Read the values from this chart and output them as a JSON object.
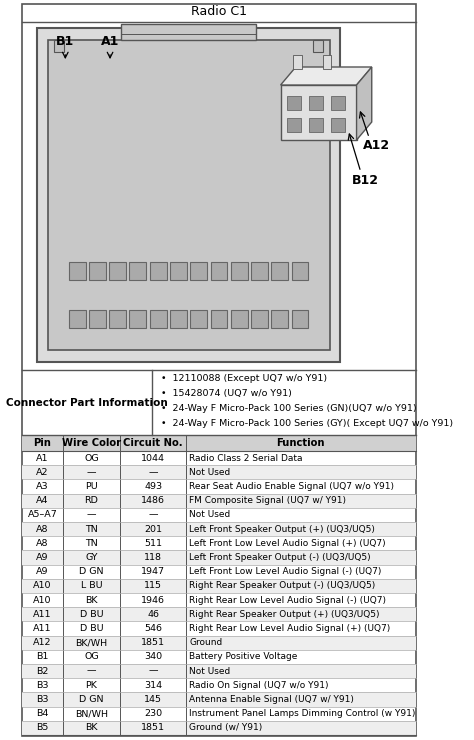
{
  "title": "Radio C1",
  "connector_label": "Connector Part Information",
  "connector_parts": [
    "12110088 (Except UQ7 w/o Y91)",
    "15428074 (UQ7 w/o Y91)",
    "24-Way F Micro-Pack 100 Series (GN)(UQ7 w/o Y91)",
    "24-Way F Micro-Pack 100 Series (GY)( Except UQ7 w/o Y91)"
  ],
  "table_headers": [
    "Pin",
    "Wire Color",
    "Circuit No.",
    "Function"
  ],
  "table_rows": [
    [
      "A1",
      "OG",
      "1044",
      "Radio Class 2 Serial Data"
    ],
    [
      "A2",
      "—",
      "—",
      "Not Used"
    ],
    [
      "A3",
      "PU",
      "493",
      "Rear Seat Audio Enable Signal (UQ7 w/o Y91)"
    ],
    [
      "A4",
      "RD",
      "1486",
      "FM Composite Signal (UQ7 w/ Y91)"
    ],
    [
      "A5–A7",
      "—",
      "—",
      "Not Used"
    ],
    [
      "A8",
      "TN",
      "201",
      "Left Front Speaker Output (+) (UQ3/UQ5)"
    ],
    [
      "A8",
      "TN",
      "511",
      "Left Front Low Level Audio Signal (+) (UQ7)"
    ],
    [
      "A9",
      "GY",
      "118",
      "Left Front Speaker Output (-) (UQ3/UQ5)"
    ],
    [
      "A9",
      "D GN",
      "1947",
      "Left Front Low Level Audio Signal (-) (UQ7)"
    ],
    [
      "A10",
      "L BU",
      "115",
      "Right Rear Speaker Output (-) (UQ3/UQ5)"
    ],
    [
      "A10",
      "BK",
      "1946",
      "Right Rear Low Level Audio Signal (-) (UQ7)"
    ],
    [
      "A11",
      "D BU",
      "46",
      "Right Rear Speaker Output (+) (UQ3/UQ5)"
    ],
    [
      "A11",
      "D BU",
      "546",
      "Right Rear Low Level Audio Signal (+) (UQ7)"
    ],
    [
      "A12",
      "BK/WH",
      "1851",
      "Ground"
    ],
    [
      "B1",
      "OG",
      "340",
      "Battery Positive Voltage"
    ],
    [
      "B2",
      "—",
      "—",
      "Not Used"
    ],
    [
      "B3",
      "PK",
      "314",
      "Radio On Signal (UQ7 w/o Y91)"
    ],
    [
      "B3",
      "D GN",
      "145",
      "Antenna Enable Signal (UQ7 w/ Y91)"
    ],
    [
      "B4",
      "BN/WH",
      "230",
      "Instrument Panel Lamps Dimming Control (w Y91)"
    ],
    [
      "B5",
      "BK",
      "1851",
      "Ground (w/ Y91)"
    ]
  ],
  "line_color": "#555555",
  "light_line": "#aaaaaa",
  "header_bg": "#d0d0d0",
  "alt_row_bg": "#eeeeee",
  "diagram_bg": "#e0e0e0",
  "connector_bg": "#d8d8d8",
  "hole_color": "#b0b0b0",
  "white": "#ffffff"
}
